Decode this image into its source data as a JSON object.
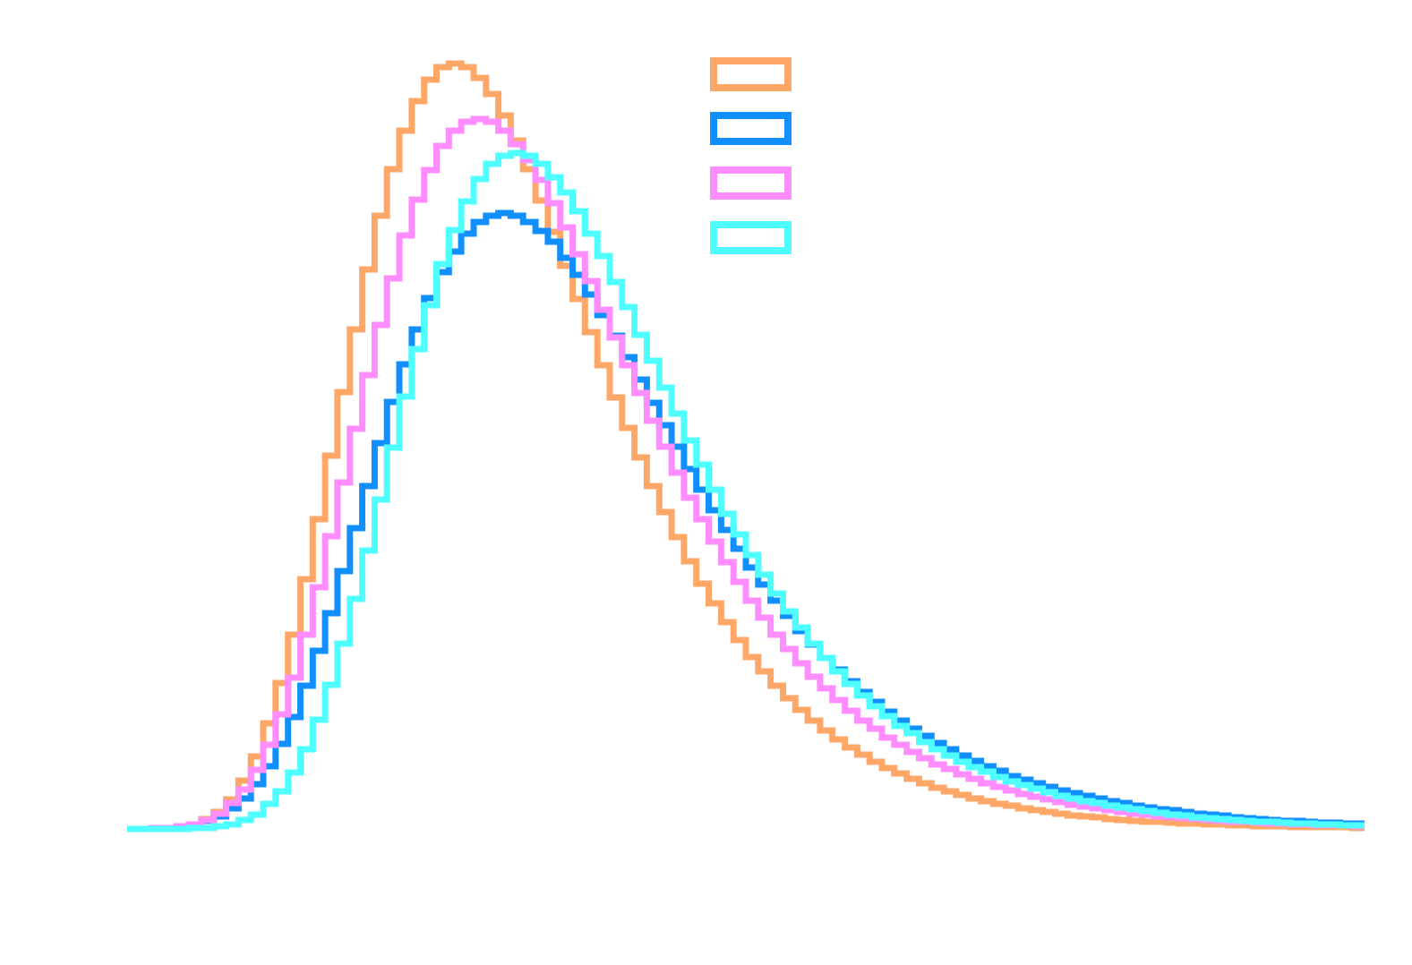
{
  "chart_data": {
    "type": "histogram-step",
    "title": "",
    "xlabel": "",
    "ylabel": "",
    "bins": 100,
    "ylim": [
      0,
      900
    ],
    "grid": false,
    "legend_placement": "top-center",
    "series": [
      {
        "color": "#FFA767",
        "values": [
          0,
          0,
          0,
          1,
          2,
          5,
          11,
          19,
          33,
          54,
          81,
          118,
          163,
          217,
          279,
          346,
          417,
          488,
          558,
          625,
          685,
          737,
          780,
          813,
          837,
          851,
          855,
          851,
          839,
          821,
          797,
          769,
          737,
          702,
          667,
          629,
          592,
          555,
          518,
          482,
          448,
          415,
          383,
          354,
          326,
          299,
          274,
          252,
          231,
          211,
          192,
          176,
          160,
          146,
          133,
          121,
          110,
          100,
          91,
          83,
          75,
          68,
          62,
          56,
          51,
          46,
          42,
          38,
          34,
          31,
          28,
          26,
          23,
          21,
          19,
          17,
          15,
          14,
          13,
          11,
          10,
          9,
          8,
          8,
          7,
          6,
          6,
          5,
          5,
          4,
          4,
          3,
          3,
          3,
          2,
          2,
          2,
          2,
          2,
          1
        ]
      },
      {
        "color": "#118FFF",
        "values": [
          0,
          0,
          1,
          1,
          3,
          5,
          9,
          14,
          23,
          34,
          50,
          70,
          95,
          125,
          160,
          199,
          241,
          288,
          336,
          383,
          431,
          477,
          519,
          558,
          593,
          622,
          645,
          665,
          678,
          685,
          688,
          685,
          678,
          668,
          656,
          638,
          619,
          597,
          574,
          551,
          527,
          502,
          476,
          451,
          427,
          402,
          379,
          356,
          334,
          313,
          292,
          273,
          255,
          238,
          221,
          206,
          191,
          178,
          165,
          153,
          142,
          131,
          121,
          112,
          104,
          96,
          89,
          82,
          76,
          70,
          65,
          59,
          55,
          51,
          47,
          43,
          40,
          37,
          34,
          31,
          29,
          26,
          24,
          22,
          21,
          19,
          17,
          16,
          15,
          13,
          12,
          11,
          10,
          9,
          9,
          8,
          7,
          7,
          6,
          6
        ]
      },
      {
        "color": "#FF8DFF",
        "values": [
          0,
          0,
          1,
          1,
          3,
          5,
          10,
          17,
          29,
          44,
          66,
          94,
          128,
          169,
          217,
          270,
          327,
          387,
          447,
          507,
          563,
          615,
          663,
          703,
          736,
          763,
          780,
          790,
          793,
          790,
          780,
          765,
          747,
          725,
          699,
          672,
          642,
          612,
          580,
          549,
          518,
          487,
          456,
          427,
          398,
          370,
          346,
          321,
          298,
          276,
          255,
          236,
          217,
          201,
          185,
          170,
          157,
          144,
          132,
          121,
          112,
          102,
          94,
          86,
          79,
          72,
          67,
          61,
          56,
          51,
          47,
          43,
          39,
          36,
          33,
          30,
          27,
          25,
          23,
          21,
          19,
          17,
          16,
          14,
          13,
          12,
          11,
          10,
          9,
          8,
          8,
          7,
          6,
          6,
          5,
          5,
          4,
          4,
          4,
          3
        ]
      },
      {
        "color": "#4FFFFF",
        "values": [
          0,
          0,
          0,
          0,
          0,
          1,
          1,
          3,
          5,
          10,
          16,
          28,
          42,
          63,
          89,
          122,
          161,
          207,
          257,
          311,
          368,
          426,
          483,
          536,
          585,
          631,
          669,
          701,
          726,
          743,
          752,
          755,
          752,
          743,
          728,
          711,
          690,
          665,
          640,
          611,
          583,
          552,
          523,
          493,
          464,
          434,
          407,
          379,
          352,
          329,
          306,
          284,
          263,
          243,
          225,
          207,
          191,
          176,
          162,
          149,
          137,
          126,
          115,
          107,
          97,
          89,
          82,
          75,
          69,
          64,
          58,
          53,
          49,
          45,
          41,
          37,
          34,
          31,
          29,
          26,
          24,
          22,
          20,
          18,
          16,
          15,
          13,
          12,
          11,
          10,
          9,
          8,
          8,
          7,
          6,
          6,
          5,
          5,
          4,
          4
        ]
      }
    ]
  }
}
